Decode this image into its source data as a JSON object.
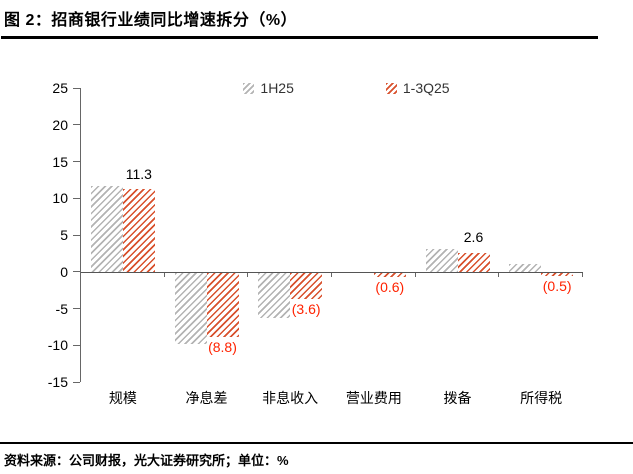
{
  "page": {
    "title": "图 2：招商银行业绩同比增速拆分（%）",
    "footer": "资料来源：公司财报，光大证券研究所；单位：%"
  },
  "chart_data": {
    "type": "bar",
    "title": "招商银行业绩同比增速拆分（%）",
    "categories": [
      "规模",
      "净息差",
      "非息收入",
      "营业费用",
      "拨备",
      "所得税"
    ],
    "series": [
      {
        "name": "1H25",
        "color": "#b3b3b3",
        "hatch": "diagonal",
        "values": [
          11.7,
          -9.7,
          -6.1,
          0.0,
          3.1,
          1.0
        ]
      },
      {
        "name": "1-3Q25",
        "color": "#d8502c",
        "hatch": "diagonal",
        "values": [
          11.3,
          -8.8,
          -3.6,
          -0.6,
          2.6,
          -0.5
        ],
        "data_labels": [
          "11.3",
          "(8.8)",
          "(3.6)",
          "(0.6)",
          "2.6",
          "(0.5)"
        ]
      }
    ],
    "xlabel": "",
    "ylabel": "",
    "ylim": [
      -15,
      25
    ],
    "yticks": [
      25,
      20,
      15,
      10,
      5,
      0,
      -5,
      -10,
      -15
    ],
    "grid": false,
    "legend_position": "top-center",
    "data_label_positive_color": "#000000",
    "data_label_negative_color": "#ff2200",
    "axis_color": "#666666"
  }
}
